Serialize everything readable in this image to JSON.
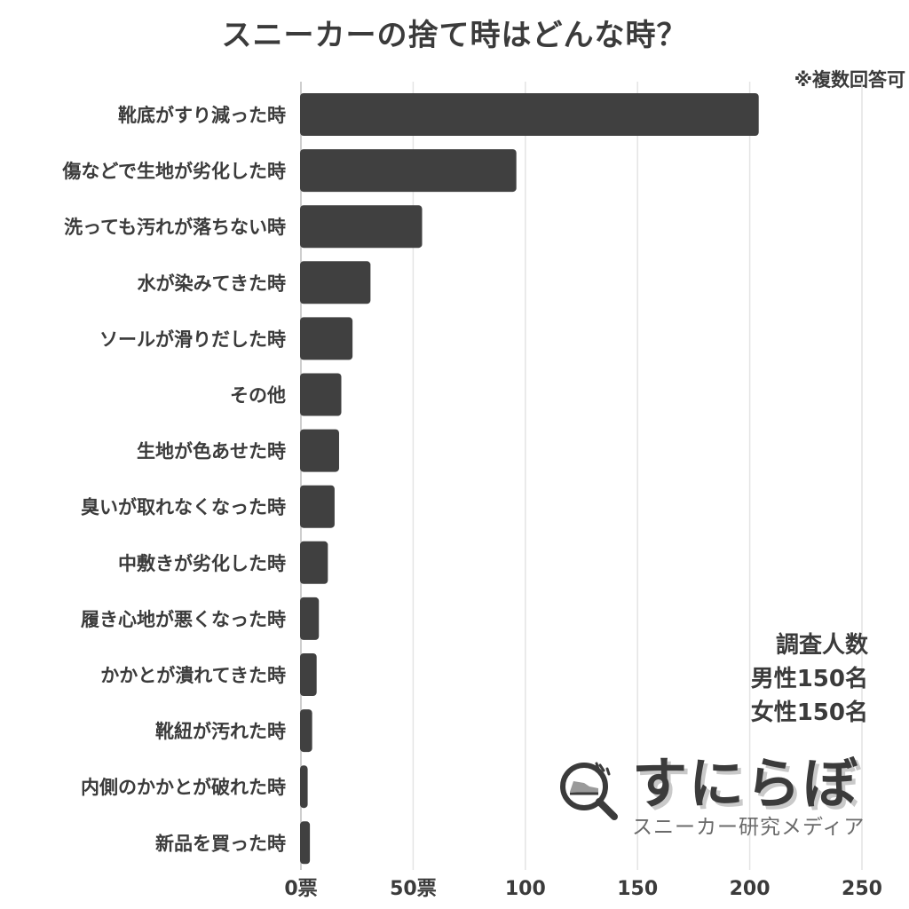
{
  "title": "スニーカーの捨て時はどんな時？",
  "note": "※複数回答可",
  "survey": {
    "heading": "調査人数",
    "male": "男性150名",
    "female": "女性150名"
  },
  "logo": {
    "name": "すにらぼ",
    "subtitle": "スニーカー研究メディア",
    "icon": "magnifier-sneaker-icon"
  },
  "colors": {
    "bar": "#404040",
    "grid": "#e4e4e4",
    "text": "#3b3b3b"
  },
  "chart_data": {
    "type": "bar",
    "orientation": "horizontal",
    "title": "スニーカーの捨て時はどんな時？",
    "categories": [
      "靴底がすり減った時",
      "傷などで生地が劣化した時",
      "洗っても汚れが落ちない時",
      "水が染みてきた時",
      "ソールが滑りだした時",
      "その他",
      "生地が色あせた時",
      "臭いが取れなくなった時",
      "中敷きが劣化した時",
      "履き心地が悪くなった時",
      "かかとが潰れてきた時",
      "靴紐が汚れた時",
      "内側のかかとが破れた時",
      "新品を買った時"
    ],
    "values": [
      204,
      96,
      54,
      31,
      23,
      18,
      17,
      15,
      12,
      8,
      7,
      5,
      3,
      4
    ],
    "xlim": [
      0,
      250
    ],
    "xticks": [
      0,
      50,
      100,
      150,
      200,
      250
    ],
    "xtick_labels": [
      "0票",
      "50票",
      "100",
      "150",
      "200",
      "250"
    ],
    "grid": "vertical"
  }
}
